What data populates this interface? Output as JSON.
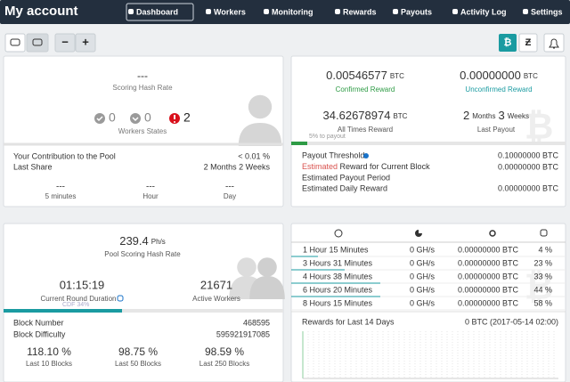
{
  "nav": {
    "title": "My account",
    "items": [
      "Dashboard",
      "Workers",
      "Monitoring",
      "Rewards",
      "Payouts",
      "Activity Log",
      "Settings"
    ],
    "active_index": 0
  },
  "toolbar": {
    "zoom_out": "−",
    "zoom_in": "+",
    "coins": [
      "₿",
      "Ƶ"
    ]
  },
  "workers_panel": {
    "scoring_hash_rate": "---",
    "scoring_hash_rate_label": "Scoring Hash Rate",
    "states": [
      0,
      0,
      2
    ],
    "states_label": "Workers States",
    "rows": [
      [
        "Your Contribution to the Pool",
        "< 0.01 %"
      ],
      [
        "Last Share",
        "2 Months 2 Weeks"
      ]
    ],
    "hash_rates": [
      {
        "value": "---",
        "label": "5 minutes"
      },
      {
        "value": "---",
        "label": "Hour"
      },
      {
        "value": "---",
        "label": "Day"
      }
    ]
  },
  "rewards_panel": {
    "confirmed": {
      "value": "0.00546577",
      "unit": "BTC",
      "label": "Confirmed Reward"
    },
    "unconfirmed": {
      "value": "0.00000000",
      "unit": "BTC",
      "label": "Unconfirmed Reward"
    },
    "all_times": {
      "value": "34.62678974",
      "unit": "BTC",
      "label": "All Times Reward"
    },
    "last_payout": {
      "parts": [
        "2",
        "Months",
        "3",
        "Weeks"
      ],
      "label": "Last Payout"
    },
    "progress_label": "5% to payout",
    "threshold": {
      "label": "Payout Threshold",
      "value": "0.10000000 BTC"
    },
    "current_block": {
      "highlight": "Estimated",
      "label": " Reward for Current Block",
      "value": "0.00000000 BTC"
    },
    "payout_period": {
      "label": "Estimated Payout Period"
    },
    "daily": {
      "label": "Estimated Daily Reward",
      "value": "0.00000000 BTC"
    }
  },
  "pool_panel": {
    "hash_rate": "239.4",
    "hash_unit": "Ph/s",
    "hash_label": "Pool Scoring Hash Rate",
    "round_duration": "01:15:19",
    "round_label": "Current Round Duration",
    "active_workers": "21671",
    "workers_label": "Active Workers",
    "cdf": "CDF 34%",
    "rows": [
      [
        "Block Number",
        "468595"
      ],
      [
        "Block Difficulty",
        "595921917085"
      ]
    ],
    "luck": [
      {
        "value": "118.10 %",
        "label": "Last 10 Blocks"
      },
      {
        "value": "98.75 %",
        "label": "Last 50 Blocks"
      },
      {
        "value": "98.59 %",
        "label": "Last 250 Blocks"
      }
    ]
  },
  "blocks_panel": {
    "rows": [
      [
        "1 Hour 15 Minutes",
        "0 GH/s",
        "0.00000000 BTC",
        "4 %"
      ],
      [
        "3 Hours 31 Minutes",
        "0 GH/s",
        "0.00000000 BTC",
        "23 %"
      ],
      [
        "4 Hours 38 Minutes",
        "0 GH/s",
        "0.00000000 BTC",
        "33 %"
      ],
      [
        "6 Hours 20 Minutes",
        "0 GH/s",
        "0.00000000 BTC",
        "44 %"
      ],
      [
        "8 Hours 15 Minutes",
        "0 GH/s",
        "0.00000000 BTC",
        "58 %"
      ]
    ],
    "rewards_title": "Rewards for Last 14 Days",
    "rewards_value": "0 BTC (2017-05-14 02:00)"
  }
}
